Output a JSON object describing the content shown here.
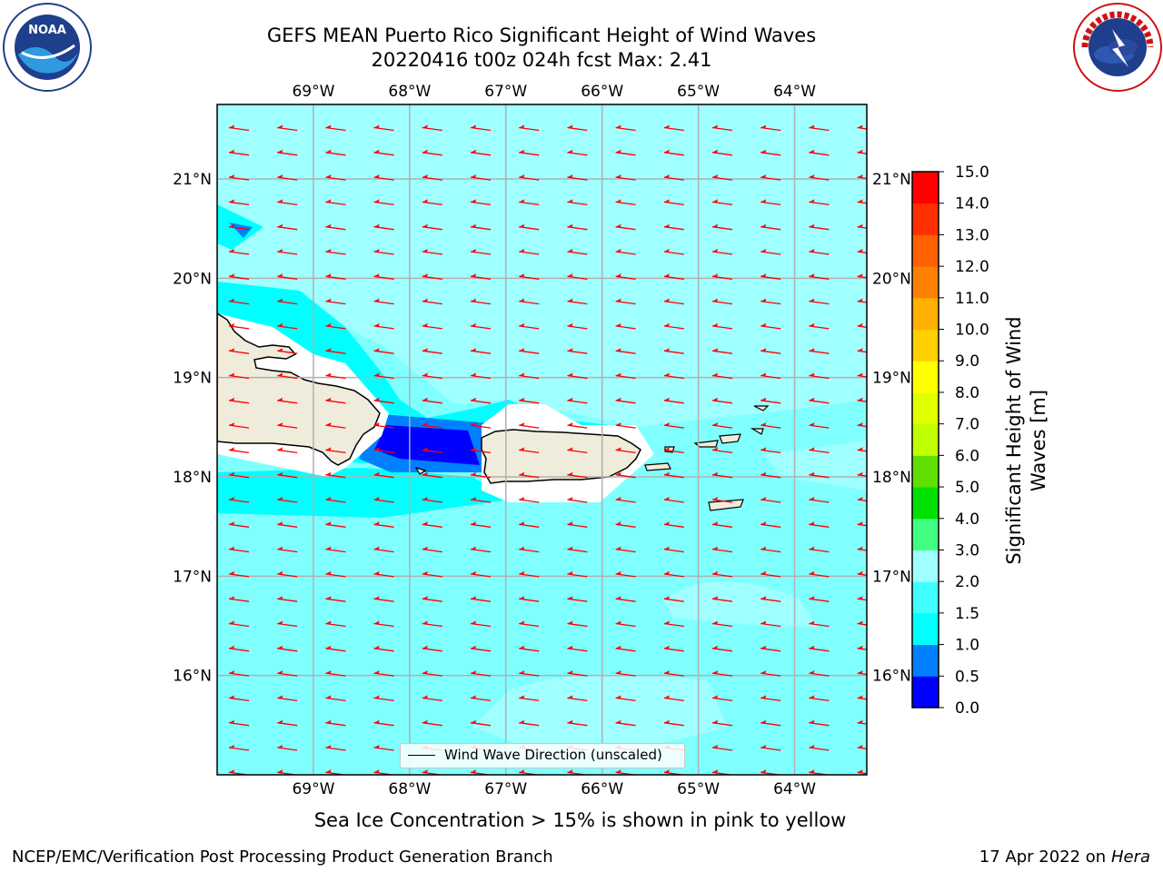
{
  "title_line1": "GEFS MEAN Puerto Rico Significant Height of Wind Waves",
  "title_line2": "20220416 t00z 024h fcst   Max: 2.41",
  "map": {
    "lon_labels": [
      "69°W",
      "68°W",
      "67°W",
      "66°W",
      "65°W",
      "64°W"
    ],
    "lat_labels": [
      "21°N",
      "20°N",
      "19°N",
      "18°N",
      "17°N",
      "16°N"
    ],
    "lon_values": [
      -69,
      -68,
      -67,
      -66,
      -65,
      -64
    ],
    "lat_values": [
      21,
      20,
      19,
      18,
      17,
      16
    ],
    "lon_range": [
      -70.0,
      -63.25
    ],
    "lat_range": [
      15.0,
      21.75
    ],
    "land_color": "#efecdc",
    "ocean_color": "#80ffff",
    "vector_color": "#ff0000",
    "vector_direction": "toward west"
  },
  "legend_label": "Wind Wave Direction (unscaled)",
  "colorbar": {
    "title": "Significant Height of Wind Waves [m]",
    "ticks": [
      "0.0",
      "0.5",
      "1.0",
      "1.5",
      "2.0",
      "3.0",
      "4.0",
      "5.0",
      "6.0",
      "7.0",
      "8.0",
      "9.0",
      "10.0",
      "11.0",
      "12.0",
      "13.0",
      "14.0",
      "15.0"
    ],
    "colors": [
      "#0000ff",
      "#0080ff",
      "#00ffff",
      "#40ffff",
      "#a0ffff",
      "#40ff80",
      "#00e000",
      "#60e000",
      "#c0ff00",
      "#e0ff00",
      "#ffff00",
      "#ffd000",
      "#ffb000",
      "#ff8000",
      "#ff6000",
      "#ff3000",
      "#ff0000"
    ]
  },
  "footnote": "Sea Ice Concentration > 15% is shown in pink to yellow",
  "credit": "NCEP/EMC/Verification Post Processing Product Generation Branch",
  "date_prefix": "17 Apr 2022 on ",
  "date_host": "Hera",
  "logos": {
    "left": "NOAA",
    "right": "NATIONAL WEATHER SERVICE"
  }
}
